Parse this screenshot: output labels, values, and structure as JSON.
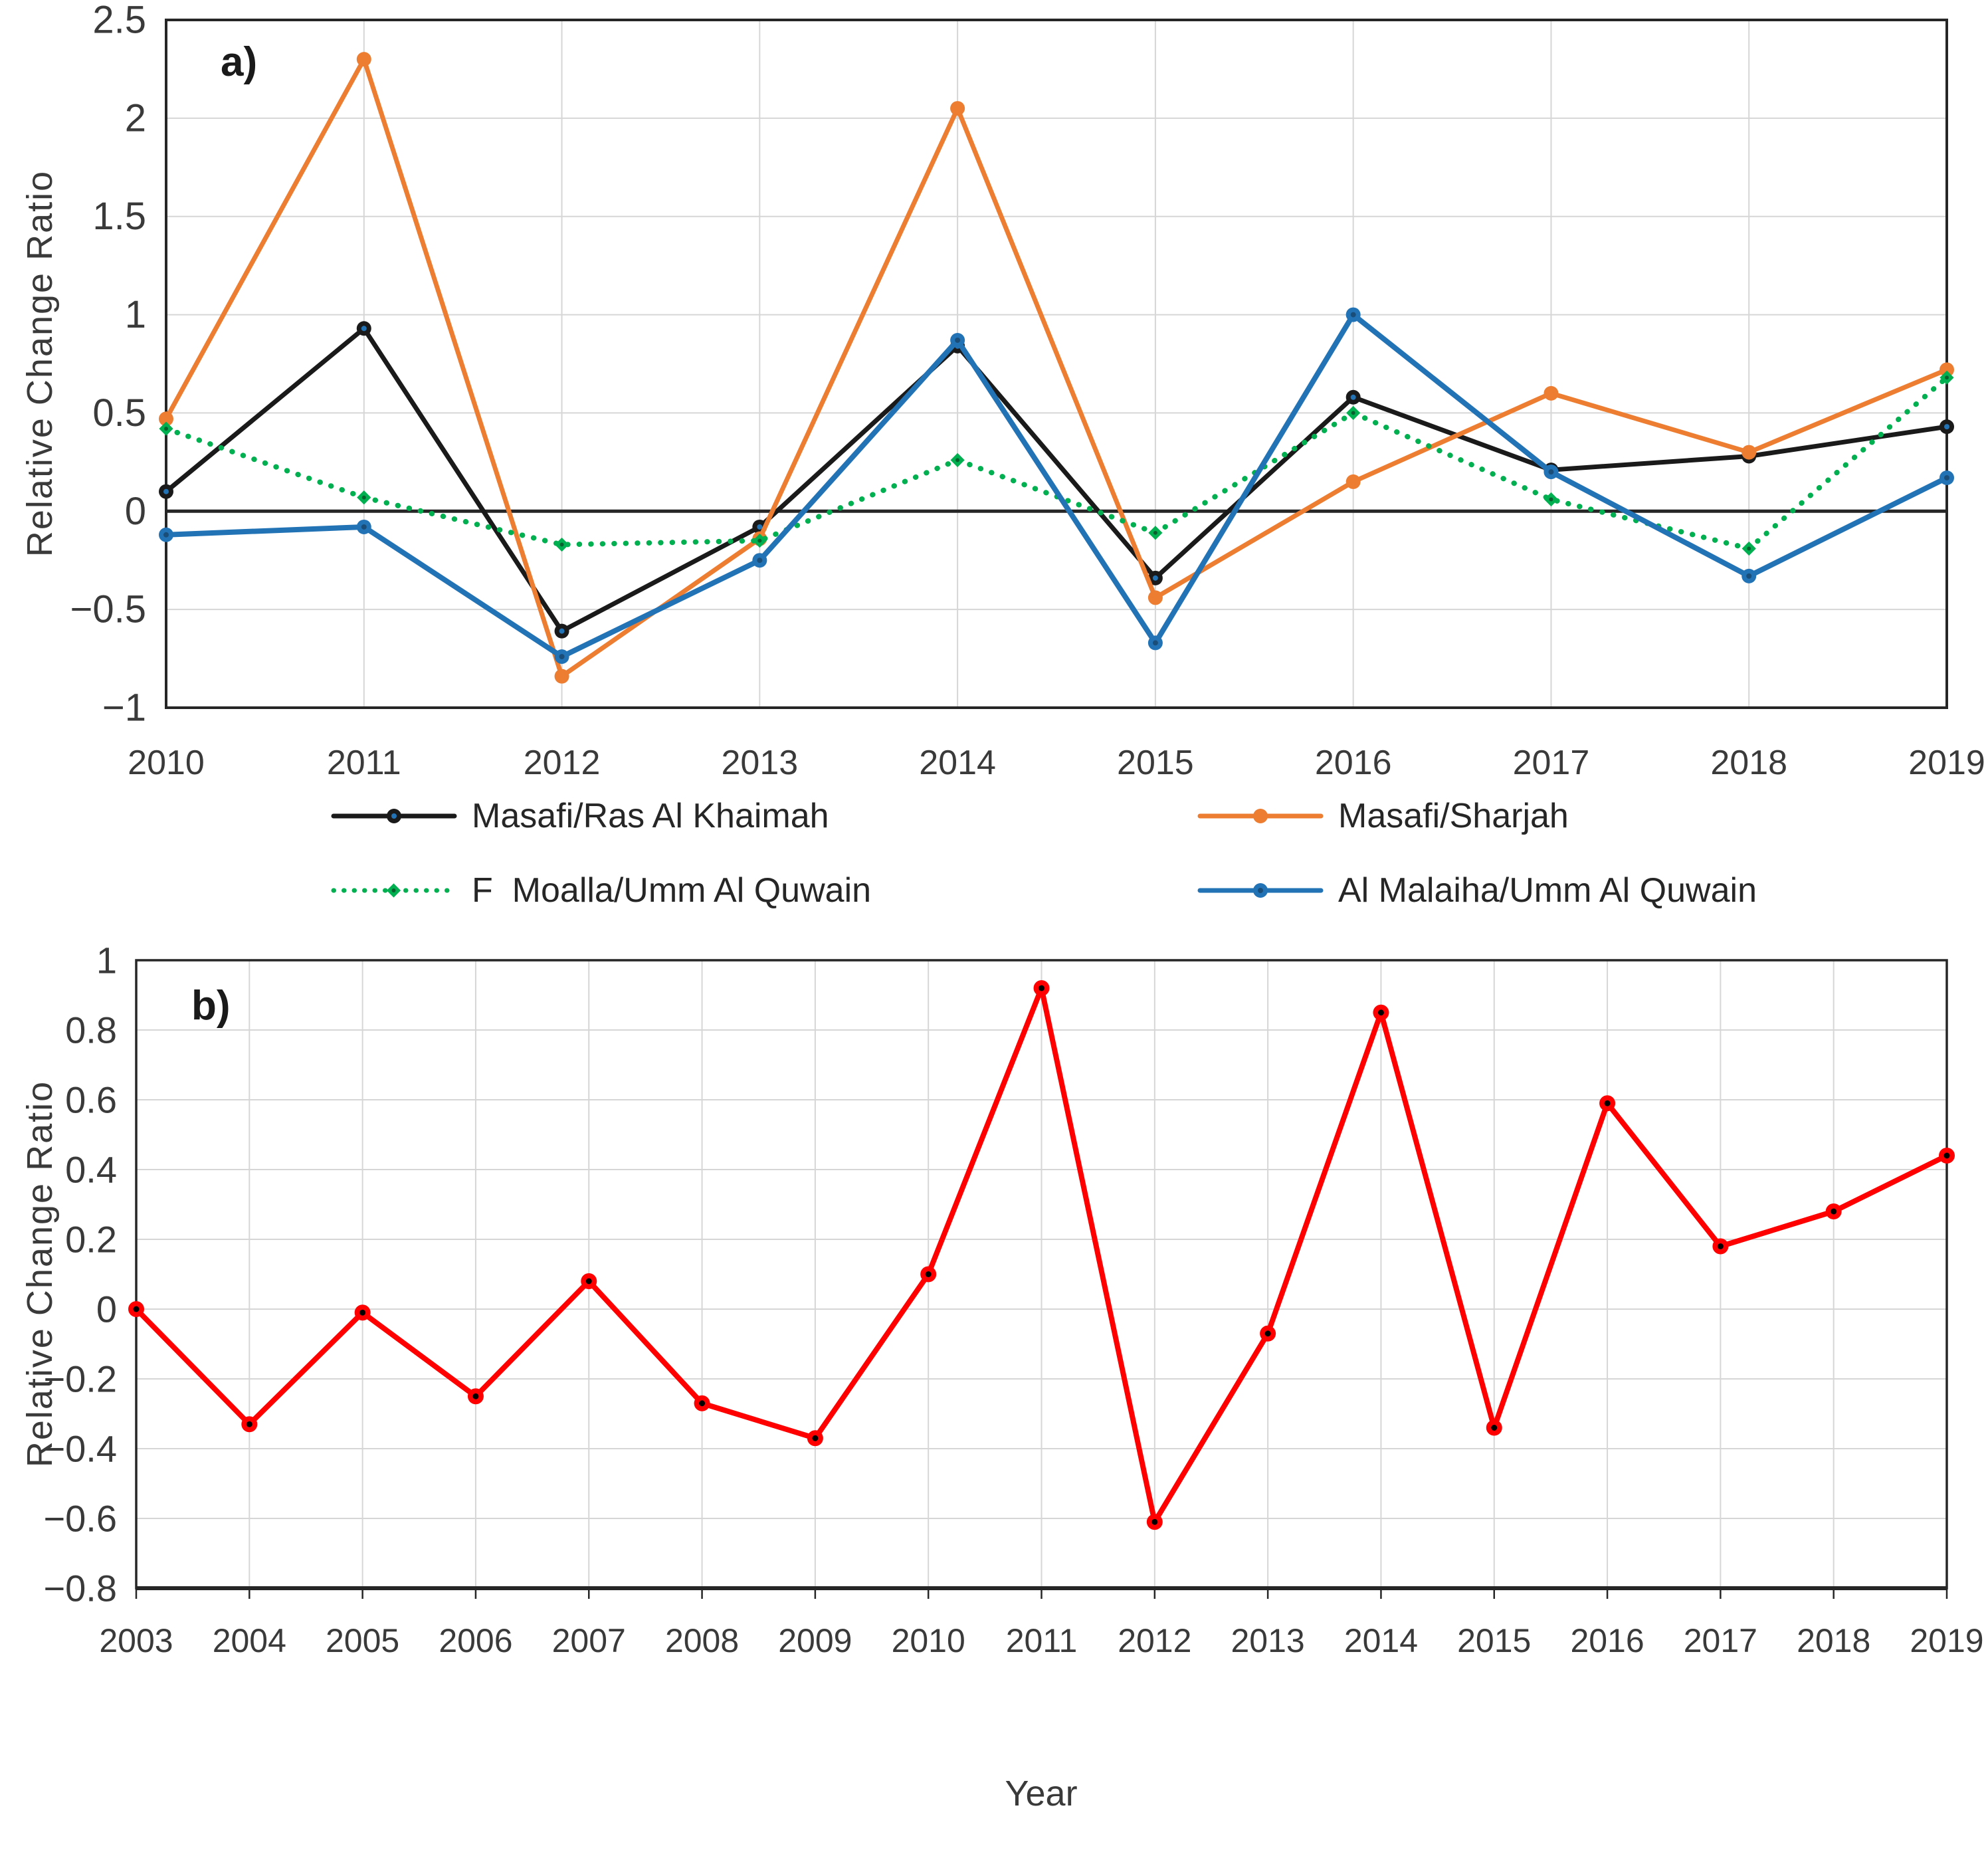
{
  "colors": {
    "black": "#1a1a1a",
    "orange": "#ED7D31",
    "green": "#00B050",
    "blue": "#2273B6",
    "red": "#FE0000",
    "grid": "#D6D6D6",
    "axis": "#3b3b3b",
    "zero_line": "#262626",
    "text": "#3a3a3a"
  },
  "chart_data": [
    {
      "id": "a",
      "type": "line",
      "panel_label": "a)",
      "categories": [
        2010,
        2011,
        2012,
        2013,
        2014,
        2015,
        2016,
        2017,
        2018,
        2019
      ],
      "series": [
        {
          "name": "Masafi/Ras Al Khaimah",
          "color": "black",
          "line": "solid",
          "values": [
            0.1,
            0.93,
            -0.61,
            -0.08,
            0.84,
            -0.34,
            0.58,
            0.21,
            0.28,
            0.43
          ]
        },
        {
          "name": "Masafi/Sharjah",
          "color": "orange",
          "line": "solid",
          "values": [
            0.47,
            2.3,
            -0.84,
            -0.14,
            2.05,
            -0.44,
            0.15,
            0.6,
            0.3,
            0.72
          ]
        },
        {
          "name": "F  Moalla/Umm Al Quwain",
          "color": "green",
          "line": "dotted",
          "values": [
            0.42,
            0.07,
            -0.17,
            -0.15,
            0.26,
            -0.11,
            0.5,
            0.06,
            -0.19,
            0.68
          ]
        },
        {
          "name": "Al Malaiha/Umm Al Quwain",
          "color": "blue",
          "line": "solid",
          "values": [
            -0.12,
            -0.08,
            -0.74,
            -0.25,
            0.87,
            -0.67,
            1.0,
            0.2,
            -0.33,
            0.17
          ]
        }
      ],
      "xlabel": "",
      "ylabel": "Relative Change Ratio",
      "ylim": [
        -1,
        2.5
      ],
      "ytick_labels": [
        "2.5",
        "2",
        "1.5",
        "1",
        "0.5",
        "0",
        "−0.5",
        "−1"
      ],
      "grid": true,
      "zero_line": true,
      "legend_position": "bottom"
    },
    {
      "id": "b",
      "type": "line",
      "panel_label": "b)",
      "categories": [
        2003,
        2004,
        2005,
        2006,
        2007,
        2008,
        2009,
        2010,
        2011,
        2012,
        2013,
        2014,
        2015,
        2016,
        2017,
        2018,
        2019
      ],
      "series": [
        {
          "color": "red",
          "line": "solid",
          "values": [
            0.0,
            -0.33,
            -0.01,
            -0.25,
            0.08,
            -0.27,
            -0.37,
            0.1,
            0.92,
            -0.61,
            -0.07,
            0.85,
            -0.34,
            0.59,
            0.18,
            0.28,
            0.44
          ]
        }
      ],
      "xlabel": "Year",
      "ylabel": "Relative Change Ratio",
      "ylim": [
        -0.8,
        1
      ],
      "ytick_labels": [
        "1",
        "0.8",
        "0.6",
        "0.4",
        "0.2",
        "0",
        "−0.2",
        "−0.4",
        "−0.6",
        "−0.8"
      ],
      "grid": true,
      "zero_line": false,
      "legend_position": "none"
    }
  ],
  "legend": {
    "items": [
      {
        "label": "Masafi/Ras Al Khaimah",
        "color": "black",
        "line": "solid"
      },
      {
        "label": "Masafi/Sharjah",
        "color": "orange",
        "line": "solid"
      },
      {
        "label": "F  Moalla/Umm Al Quwain",
        "color": "green",
        "line": "dotted"
      },
      {
        "label": "Al Malaiha/Umm Al Quwain",
        "color": "blue",
        "line": "solid"
      }
    ]
  }
}
